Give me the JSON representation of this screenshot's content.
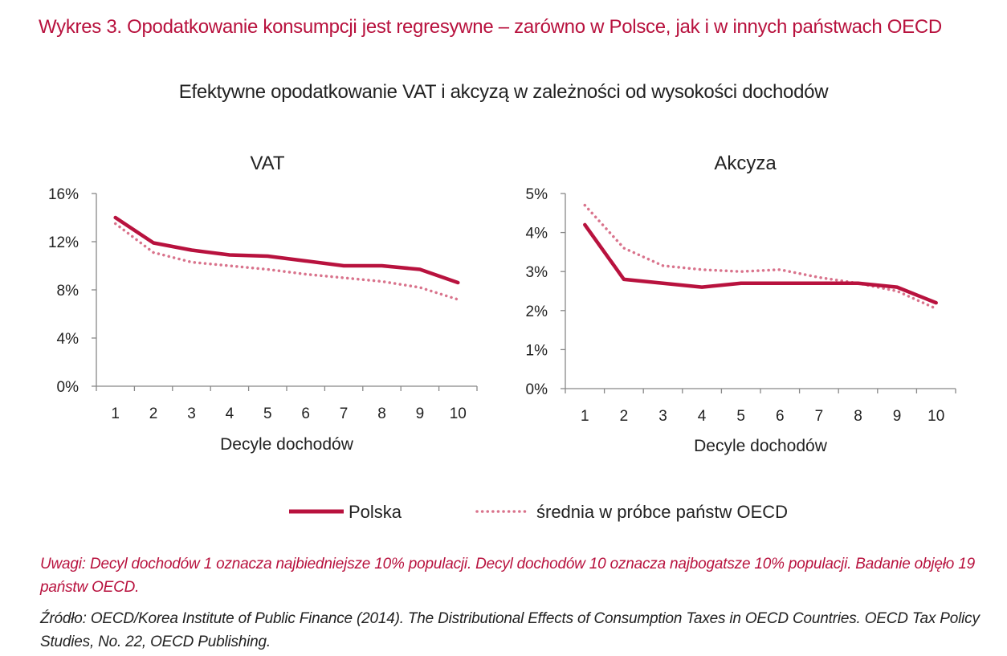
{
  "title": "Wykres 3. Opodatkowanie konsumpcji jest regresywne – zarówno w Polsce, jak i w innych państwach OECD",
  "subtitle": "Efektywne opodatkowanie VAT i akcyzą w zależności od wysokości dochodów",
  "colors": {
    "polska": "#b8123e",
    "oecd": "#d9738c",
    "axis": "#888888",
    "text": "#222222"
  },
  "chart_data": [
    {
      "type": "line",
      "title": "VAT",
      "xlabel": "Decyle dochodów",
      "ylabel": "",
      "x": [
        1,
        2,
        3,
        4,
        5,
        6,
        7,
        8,
        9,
        10
      ],
      "ylim": [
        0,
        16
      ],
      "yticks": [
        "0%",
        "4%",
        "8%",
        "12%",
        "16%"
      ],
      "ytick_values": [
        0,
        4,
        8,
        12,
        16
      ],
      "grid": false,
      "series": [
        {
          "name": "Polska",
          "style": "solid",
          "values": [
            14.0,
            11.9,
            11.3,
            10.9,
            10.8,
            10.4,
            10.0,
            10.0,
            9.7,
            8.6
          ]
        },
        {
          "name": "średnia w próbce państw OECD",
          "style": "dotted",
          "values": [
            13.5,
            11.1,
            10.3,
            10.0,
            9.7,
            9.3,
            9.0,
            8.7,
            8.2,
            7.2
          ]
        }
      ]
    },
    {
      "type": "line",
      "title": "Akcyza",
      "xlabel": "Decyle dochodów",
      "ylabel": "",
      "x": [
        1,
        2,
        3,
        4,
        5,
        6,
        7,
        8,
        9,
        10
      ],
      "ylim": [
        0,
        5
      ],
      "yticks": [
        "0%",
        "1%",
        "2%",
        "3%",
        "4%",
        "5%"
      ],
      "ytick_values": [
        0,
        1,
        2,
        3,
        4,
        5
      ],
      "grid": false,
      "series": [
        {
          "name": "Polska",
          "style": "solid",
          "values": [
            4.2,
            2.8,
            2.7,
            2.6,
            2.7,
            2.7,
            2.7,
            2.7,
            2.6,
            2.2
          ]
        },
        {
          "name": "średnia w próbce państw OECD",
          "style": "dotted",
          "values": [
            4.7,
            3.6,
            3.15,
            3.05,
            3.0,
            3.05,
            2.85,
            2.7,
            2.5,
            2.05
          ]
        }
      ]
    }
  ],
  "legend": {
    "placement": "bottom-center",
    "items": [
      {
        "label": "Polska",
        "style": "solid"
      },
      {
        "label": "średnia w próbce państw OECD",
        "style": "dotted"
      }
    ]
  },
  "note": "Uwagi: Decyl dochodów 1 oznacza najbiedniejsze 10% populacji. Decyl dochodów 10 oznacza najbogatsze 10% populacji. Badanie objęło 19 państw OECD.",
  "source": "Źródło: OECD/Korea Institute of Public Finance (2014). The Distributional Effects of Consumption Taxes in OECD Countries. OECD Tax Policy Studies, No. 22, OECD Publishing."
}
